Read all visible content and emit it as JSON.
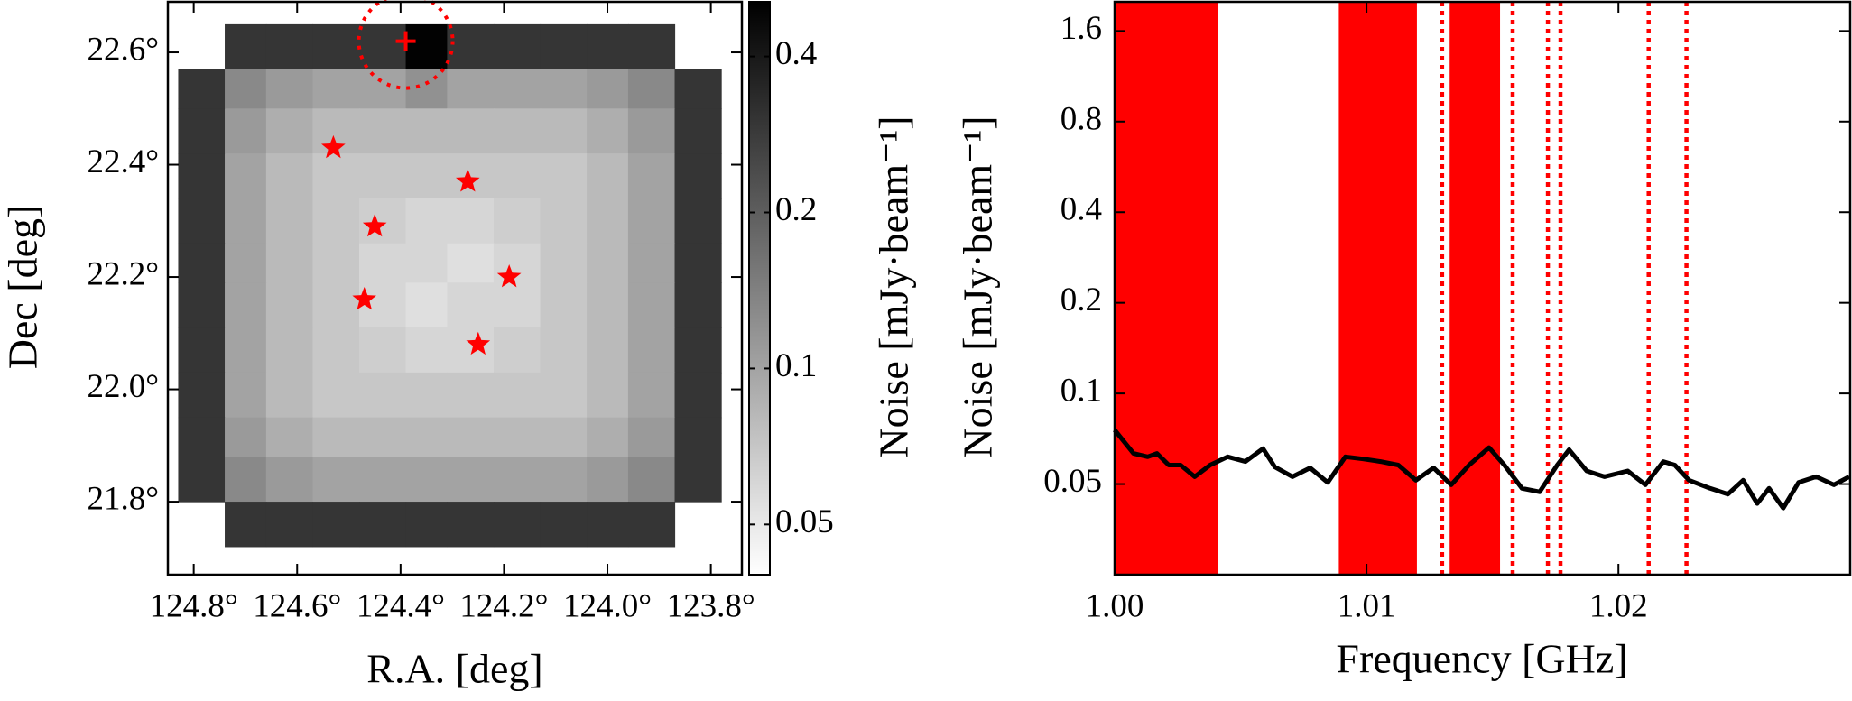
{
  "chart_data": [
    {
      "type": "heatmap",
      "xlabel": "R.A. [deg]",
      "ylabel": "Dec [deg]",
      "xlim": [
        124.85,
        123.74
      ],
      "ylim": [
        21.67,
        22.69
      ],
      "xticks": [
        {
          "value": 124.8,
          "label": "124.8°"
        },
        {
          "value": 124.6,
          "label": "124.6°"
        },
        {
          "value": 124.4,
          "label": "124.4°"
        },
        {
          "value": 124.2,
          "label": "124.2°"
        },
        {
          "value": 124.0,
          "label": "124.0°"
        },
        {
          "value": 123.8,
          "label": "123.8°"
        }
      ],
      "yticks": [
        {
          "value": 21.8,
          "label": "21.8°"
        },
        {
          "value": 22.0,
          "label": "22.0°"
        },
        {
          "value": 22.2,
          "label": "22.2°"
        },
        {
          "value": 22.4,
          "label": "22.4°"
        },
        {
          "value": 22.6,
          "label": "22.6°"
        }
      ],
      "image": {
        "x_edges": [
          124.83,
          124.74,
          124.66,
          124.57,
          124.48,
          124.39,
          124.31,
          124.22,
          124.13,
          124.04,
          123.96,
          123.87,
          123.78
        ],
        "y_edges": [
          22.65,
          22.57,
          22.5,
          22.42,
          22.34,
          22.26,
          22.19,
          22.11,
          22.03,
          21.95,
          21.88,
          21.8,
          21.72
        ],
        "values": [
          [
            null,
            0.3,
            0.3,
            0.3,
            0.3,
            0.5,
            0.3,
            0.3,
            0.3,
            0.3,
            0.3,
            null
          ],
          [
            0.3,
            0.13,
            0.11,
            0.1,
            0.1,
            0.12,
            0.1,
            0.1,
            0.1,
            0.11,
            0.13,
            0.3
          ],
          [
            0.3,
            0.11,
            0.09,
            0.08,
            0.08,
            0.08,
            0.08,
            0.08,
            0.08,
            0.09,
            0.11,
            0.3
          ],
          [
            0.3,
            0.1,
            0.08,
            0.07,
            0.07,
            0.07,
            0.07,
            0.07,
            0.07,
            0.08,
            0.1,
            0.3
          ],
          [
            0.3,
            0.1,
            0.08,
            0.07,
            0.065,
            0.06,
            0.06,
            0.065,
            0.07,
            0.08,
            0.1,
            0.3
          ],
          [
            0.3,
            0.1,
            0.08,
            0.07,
            0.06,
            0.06,
            0.055,
            0.06,
            0.07,
            0.08,
            0.1,
            0.3
          ],
          [
            0.3,
            0.1,
            0.08,
            0.07,
            0.06,
            0.055,
            0.06,
            0.06,
            0.07,
            0.08,
            0.1,
            0.3
          ],
          [
            0.3,
            0.1,
            0.08,
            0.07,
            0.065,
            0.06,
            0.06,
            0.065,
            0.07,
            0.08,
            0.1,
            0.3
          ],
          [
            0.3,
            0.1,
            0.08,
            0.07,
            0.07,
            0.07,
            0.07,
            0.07,
            0.07,
            0.08,
            0.1,
            0.3
          ],
          [
            0.3,
            0.11,
            0.09,
            0.08,
            0.08,
            0.08,
            0.08,
            0.08,
            0.08,
            0.09,
            0.11,
            0.3
          ],
          [
            0.3,
            0.13,
            0.11,
            0.1,
            0.1,
            0.1,
            0.1,
            0.1,
            0.1,
            0.11,
            0.13,
            0.3
          ],
          [
            null,
            0.3,
            0.3,
            0.3,
            0.3,
            0.3,
            0.3,
            0.3,
            0.3,
            0.3,
            0.3,
            null
          ]
        ]
      },
      "colorbar": {
        "label": "Noise [mJy·beam⁻¹]",
        "clim": [
          0.04,
          0.51
        ],
        "log": true,
        "ticks": [
          0.05,
          0.1,
          0.2,
          0.4
        ]
      },
      "sources": {
        "color": "#ff0000",
        "x": [
          124.53,
          124.27,
          124.45,
          124.19,
          124.47,
          124.25
        ],
        "y": [
          22.43,
          22.37,
          22.29,
          22.2,
          22.16,
          22.08
        ]
      },
      "target": {
        "color": "#ff0000",
        "x": 124.39,
        "y": 22.62
      }
    },
    {
      "type": "line",
      "xlabel": "Frequency [GHz]",
      "ylabel": "Noise [mJy·beam⁻¹]",
      "xlim": [
        1.0,
        1.0292
      ],
      "ylim": [
        0.025,
        2.0
      ],
      "log_y": true,
      "xticks": [
        {
          "value": 1.0,
          "label": "1.00"
        },
        1.01,
        1.02
      ],
      "yticks": [
        0.05,
        0.1,
        0.2,
        0.4,
        0.8,
        1.6
      ],
      "band_color": "#ff0000",
      "bands": [
        [
          1.0,
          1.0041
        ],
        [
          1.0089,
          1.012
        ],
        [
          1.0133,
          1.0153
        ]
      ],
      "vlines": [
        1.013,
        1.0158,
        1.0172,
        1.0177,
        1.0212,
        1.0227
      ],
      "x": [
        1.0,
        1.00075,
        1.00131,
        1.00168,
        1.00215,
        1.00262,
        1.00318,
        1.00379,
        1.00449,
        1.00519,
        1.00589,
        1.00636,
        1.00706,
        1.00776,
        1.00846,
        1.00916,
        1.00986,
        1.01056,
        1.01126,
        1.01196,
        1.01266,
        1.01336,
        1.01407,
        1.01486,
        1.01547,
        1.01617,
        1.01687,
        1.01757,
        1.01804,
        1.01874,
        1.01944,
        1.02037,
        1.02107,
        1.02178,
        1.02224,
        1.0228,
        1.02364,
        1.02435,
        1.02495,
        1.02551,
        1.02598,
        1.02654,
        1.02715,
        1.02785,
        1.02855,
        1.02916
      ],
      "series": [
        {
          "color": "#000000",
          "values": [
            0.0756,
            0.0632,
            0.0616,
            0.0632,
            0.0578,
            0.0578,
            0.0529,
            0.0578,
            0.0616,
            0.0594,
            0.0656,
            0.057,
            0.0529,
            0.0566,
            0.0506,
            0.0616,
            0.0606,
            0.0594,
            0.0578,
            0.0515,
            0.0566,
            0.0497,
            0.0578,
            0.0661,
            0.0578,
            0.0484,
            0.0471,
            0.0578,
            0.065,
            0.0553,
            0.0529,
            0.0553,
            0.0497,
            0.0594,
            0.0578,
            0.0515,
            0.0484,
            0.0463,
            0.0515,
            0.0431,
            0.0484,
            0.0416,
            0.0506,
            0.0529,
            0.0497,
            0.0529
          ]
        }
      ]
    }
  ]
}
